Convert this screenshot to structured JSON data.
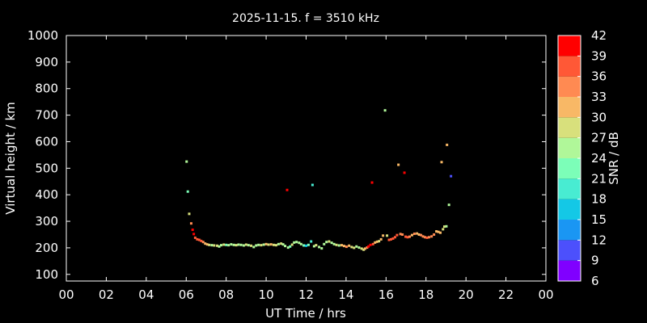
{
  "chart_data": {
    "type": "scatter",
    "title": "2025-11-15. f = 3510 kHz",
    "xlabel": "UT Time / hrs",
    "ylabel": "Virtual height / km",
    "colorbar_label": "SNR / dB",
    "xlim": [
      0,
      24
    ],
    "ylim": [
      75,
      1000
    ],
    "x_ticks": [
      "00",
      "02",
      "04",
      "06",
      "08",
      "10",
      "12",
      "14",
      "16",
      "18",
      "20",
      "22",
      "00"
    ],
    "y_ticks": [
      "100",
      "200",
      "300",
      "400",
      "500",
      "600",
      "700",
      "800",
      "900",
      "1000"
    ],
    "colorbar": {
      "levels": [
        "6",
        "9",
        "12",
        "15",
        "18",
        "21",
        "24",
        "27",
        "30",
        "33",
        "36",
        "39",
        "42"
      ],
      "colors": [
        "#8000ff",
        "#4c50fc",
        "#1a96f3",
        "#14c8e6",
        "#48ecd2",
        "#7cfeb8",
        "#b0f799",
        "#d8e07c",
        "#f8b866",
        "#ff8a52",
        "#ff5836",
        "#ff0000"
      ]
    },
    "points": [
      [
        6.02,
        525,
        24
      ],
      [
        6.08,
        412,
        22
      ],
      [
        6.15,
        328,
        28
      ],
      [
        6.25,
        292,
        33
      ],
      [
        6.32,
        268,
        39
      ],
      [
        6.38,
        252,
        40
      ],
      [
        6.45,
        238,
        37
      ],
      [
        6.55,
        232,
        38
      ],
      [
        6.65,
        230,
        36
      ],
      [
        6.75,
        226,
        37
      ],
      [
        6.85,
        222,
        34
      ],
      [
        6.95,
        216,
        30
      ],
      [
        7.05,
        213,
        30
      ],
      [
        7.15,
        211,
        28
      ],
      [
        7.28,
        210,
        25
      ],
      [
        7.4,
        209,
        29
      ],
      [
        7.55,
        208,
        27
      ],
      [
        7.65,
        205,
        25
      ],
      [
        7.75,
        210,
        24
      ],
      [
        7.88,
        212,
        27
      ],
      [
        8.0,
        211,
        23
      ],
      [
        8.12,
        210,
        25
      ],
      [
        8.25,
        213,
        26
      ],
      [
        8.38,
        211,
        24
      ],
      [
        8.5,
        210,
        27
      ],
      [
        8.62,
        212,
        25
      ],
      [
        8.75,
        211,
        26
      ],
      [
        8.88,
        209,
        24
      ],
      [
        9.0,
        212,
        28
      ],
      [
        9.12,
        210,
        25
      ],
      [
        9.25,
        208,
        27
      ],
      [
        9.38,
        203,
        24
      ],
      [
        9.5,
        209,
        26
      ],
      [
        9.62,
        211,
        25
      ],
      [
        9.75,
        210,
        28
      ],
      [
        9.88,
        212,
        26
      ],
      [
        10.0,
        214,
        30
      ],
      [
        10.12,
        212,
        28
      ],
      [
        10.25,
        213,
        31
      ],
      [
        10.38,
        211,
        29
      ],
      [
        10.5,
        210,
        27
      ],
      [
        10.62,
        214,
        26
      ],
      [
        10.75,
        216,
        28
      ],
      [
        10.85,
        213,
        25
      ],
      [
        10.95,
        207,
        24
      ],
      [
        11.05,
        418,
        39
      ],
      [
        11.1,
        201,
        25
      ],
      [
        11.2,
        205,
        23
      ],
      [
        11.3,
        212,
        27
      ],
      [
        11.4,
        220,
        26
      ],
      [
        11.52,
        222,
        25
      ],
      [
        11.65,
        219,
        24
      ],
      [
        11.75,
        214,
        26
      ],
      [
        11.88,
        209,
        22
      ],
      [
        12.0,
        208,
        15
      ],
      [
        12.12,
        211,
        23
      ],
      [
        12.25,
        224,
        19
      ],
      [
        12.32,
        437,
        20
      ],
      [
        12.4,
        206,
        25
      ],
      [
        12.5,
        210,
        27
      ],
      [
        12.65,
        203,
        26
      ],
      [
        12.78,
        198,
        24
      ],
      [
        12.9,
        214,
        26
      ],
      [
        13.02,
        222,
        25
      ],
      [
        13.15,
        224,
        27
      ],
      [
        13.28,
        219,
        26
      ],
      [
        13.4,
        214,
        25
      ],
      [
        13.52,
        211,
        27
      ],
      [
        13.65,
        209,
        26
      ],
      [
        13.78,
        210,
        31
      ],
      [
        13.9,
        207,
        30
      ],
      [
        14.02,
        204,
        33
      ],
      [
        14.15,
        208,
        31
      ],
      [
        14.28,
        203,
        29
      ],
      [
        14.4,
        200,
        27
      ],
      [
        14.52,
        205,
        24
      ],
      [
        14.65,
        201,
        26
      ],
      [
        14.78,
        197,
        29
      ],
      [
        14.88,
        193,
        28
      ],
      [
        14.95,
        197,
        30
      ],
      [
        15.05,
        201,
        35
      ],
      [
        15.12,
        205,
        39
      ],
      [
        15.22,
        211,
        40
      ],
      [
        15.3,
        446,
        40
      ],
      [
        15.35,
        214,
        36
      ],
      [
        15.45,
        220,
        31
      ],
      [
        15.55,
        223,
        30
      ],
      [
        15.65,
        225,
        29
      ],
      [
        15.75,
        232,
        31
      ],
      [
        15.85,
        246,
        30
      ],
      [
        15.95,
        718,
        24
      ],
      [
        16.05,
        246,
        29
      ],
      [
        16.15,
        230,
        38
      ],
      [
        16.25,
        232,
        37
      ],
      [
        16.35,
        235,
        36
      ],
      [
        16.45,
        240,
        37
      ],
      [
        16.55,
        248,
        36
      ],
      [
        16.62,
        513,
        31
      ],
      [
        16.72,
        252,
        34
      ],
      [
        16.82,
        250,
        33
      ],
      [
        16.92,
        483,
        39
      ],
      [
        16.98,
        242,
        36
      ],
      [
        17.08,
        240,
        37
      ],
      [
        17.18,
        242,
        35
      ],
      [
        17.3,
        248,
        31
      ],
      [
        17.42,
        253,
        33
      ],
      [
        17.55,
        254,
        31
      ],
      [
        17.65,
        250,
        32
      ],
      [
        17.75,
        248,
        33
      ],
      [
        17.85,
        243,
        35
      ],
      [
        17.95,
        240,
        33
      ],
      [
        18.05,
        238,
        36
      ],
      [
        18.15,
        240,
        34
      ],
      [
        18.28,
        243,
        35
      ],
      [
        18.4,
        250,
        33
      ],
      [
        18.52,
        262,
        30
      ],
      [
        18.62,
        260,
        31
      ],
      [
        18.72,
        257,
        32
      ],
      [
        18.78,
        523,
        30
      ],
      [
        18.85,
        270,
        28
      ],
      [
        18.92,
        280,
        29
      ],
      [
        19.02,
        281,
        24
      ],
      [
        19.05,
        588,
        30
      ],
      [
        19.15,
        362,
        24
      ],
      [
        19.25,
        470,
        11
      ]
    ]
  }
}
